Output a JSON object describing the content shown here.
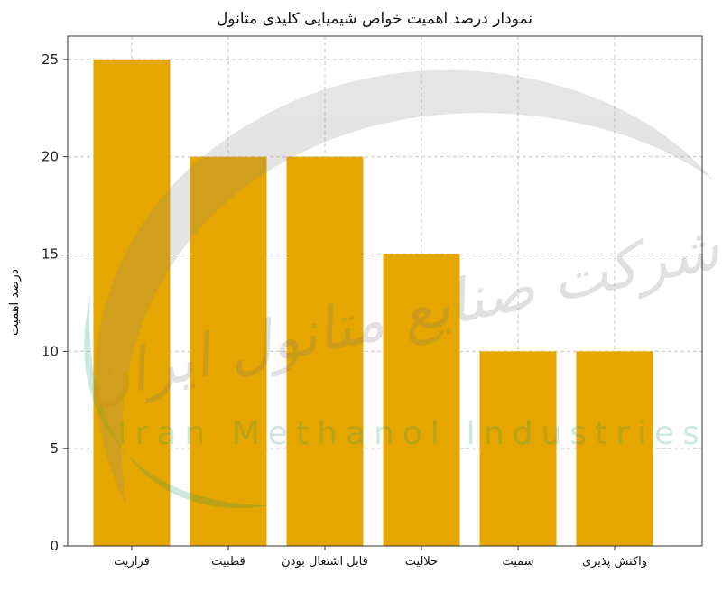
{
  "chart_data": {
    "type": "bar",
    "title": "نمودار درصد اهمیت خواص شیمیایی کلیدی متانول",
    "xlabel": "",
    "ylabel": "درصد اهمیت",
    "categories": [
      "فراریت",
      "قطبیت",
      "قابل اشتعال بودن",
      "حلالیت",
      "سمیت",
      "واکنش پذیری"
    ],
    "values": [
      25,
      20,
      20,
      15,
      10,
      10
    ],
    "ylim": [
      0,
      26.2
    ],
    "yticks": [
      0,
      5,
      10,
      15,
      20,
      25
    ],
    "grid": true,
    "bar_color": "#E5A600",
    "watermark": {
      "fa": "شرکت صنایع متانول ایران",
      "en": "Iran Methanol Industries Co"
    }
  }
}
